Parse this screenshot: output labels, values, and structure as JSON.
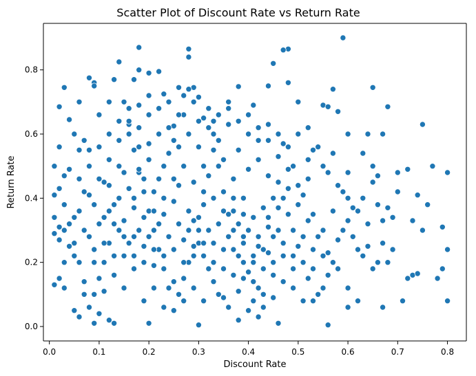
{
  "chart_data": {
    "type": "scatter",
    "title": "Scatter Plot of Discount Rate vs Return Rate",
    "xlabel": "Discount Rate",
    "ylabel": "Return Rate",
    "xlim": [
      -0.012,
      0.838
    ],
    "ylim": [
      -0.045,
      0.945
    ],
    "xticks": [
      0.0,
      0.1,
      0.2,
      0.3,
      0.4,
      0.5,
      0.6,
      0.7,
      0.8
    ],
    "yticks": [
      0.0,
      0.2,
      0.4,
      0.6,
      0.8
    ],
    "x_tick_labels": [
      "0.0",
      "0.1",
      "0.2",
      "0.3",
      "0.4",
      "0.5",
      "0.6",
      "0.7",
      "0.8"
    ],
    "y_tick_labels": [
      "0.0",
      "0.2",
      "0.4",
      "0.6",
      "0.8"
    ],
    "grid": false,
    "legend": "none",
    "marker_color": "#1f77b4",
    "points": [
      [
        0.59,
        0.9
      ],
      [
        0.18,
        0.87
      ],
      [
        0.28,
        0.865
      ],
      [
        0.48,
        0.865
      ],
      [
        0.47,
        0.862
      ],
      [
        0.28,
        0.84
      ],
      [
        0.14,
        0.825
      ],
      [
        0.45,
        0.82
      ],
      [
        0.18,
        0.8
      ],
      [
        0.2,
        0.79
      ],
      [
        0.22,
        0.795
      ],
      [
        0.08,
        0.775
      ],
      [
        0.09,
        0.76
      ],
      [
        0.09,
        0.75
      ],
      [
        0.13,
        0.77
      ],
      [
        0.17,
        0.77
      ],
      [
        0.03,
        0.745
      ],
      [
        0.26,
        0.745
      ],
      [
        0.29,
        0.745
      ],
      [
        0.38,
        0.748
      ],
      [
        0.44,
        0.75
      ],
      [
        0.48,
        0.76
      ],
      [
        0.57,
        0.74
      ],
      [
        0.65,
        0.745
      ],
      [
        0.23,
        0.725
      ],
      [
        0.27,
        0.72
      ],
      [
        0.3,
        0.715
      ],
      [
        0.06,
        0.7
      ],
      [
        0.12,
        0.7
      ],
      [
        0.15,
        0.7
      ],
      [
        0.36,
        0.7
      ],
      [
        0.41,
        0.69
      ],
      [
        0.5,
        0.7
      ],
      [
        0.55,
        0.69
      ],
      [
        0.56,
        0.685
      ],
      [
        0.58,
        0.67
      ],
      [
        0.68,
        0.685
      ],
      [
        0.02,
        0.685
      ],
      [
        0.1,
        0.66
      ],
      [
        0.04,
        0.645
      ],
      [
        0.16,
        0.63
      ],
      [
        0.25,
        0.625
      ],
      [
        0.33,
        0.64
      ],
      [
        0.44,
        0.63
      ],
      [
        0.52,
        0.62
      ],
      [
        0.6,
        0.6
      ],
      [
        0.64,
        0.6
      ],
      [
        0.67,
        0.6
      ],
      [
        0.75,
        0.63
      ],
      [
        0.05,
        0.6
      ],
      [
        0.07,
        0.58
      ],
      [
        0.08,
        0.55
      ],
      [
        0.02,
        0.56
      ],
      [
        0.2,
        0.57
      ],
      [
        0.42,
        0.58
      ],
      [
        0.47,
        0.57
      ],
      [
        0.53,
        0.55
      ],
      [
        0.57,
        0.54
      ],
      [
        0.63,
        0.54
      ],
      [
        0.01,
        0.5
      ],
      [
        0.03,
        0.47
      ],
      [
        0.02,
        0.43
      ],
      [
        0.01,
        0.41
      ],
      [
        0.04,
        0.49
      ],
      [
        0.06,
        0.46
      ],
      [
        0.11,
        0.45
      ],
      [
        0.18,
        0.48
      ],
      [
        0.31,
        0.5
      ],
      [
        0.4,
        0.49
      ],
      [
        0.49,
        0.5
      ],
      [
        0.55,
        0.5
      ],
      [
        0.6,
        0.48
      ],
      [
        0.65,
        0.5
      ],
      [
        0.7,
        0.48
      ],
      [
        0.72,
        0.49
      ],
      [
        0.77,
        0.5
      ],
      [
        0.8,
        0.48
      ],
      [
        0.66,
        0.47
      ],
      [
        0.01,
        0.34
      ],
      [
        0.01,
        0.29
      ],
      [
        0.02,
        0.27
      ],
      [
        0.03,
        0.3
      ],
      [
        0.02,
        0.31
      ],
      [
        0.04,
        0.25
      ],
      [
        0.03,
        0.2
      ],
      [
        0.05,
        0.22
      ],
      [
        0.02,
        0.15
      ],
      [
        0.03,
        0.12
      ],
      [
        0.01,
        0.13
      ],
      [
        0.07,
        0.1
      ],
      [
        0.05,
        0.05
      ],
      [
        0.06,
        0.03
      ],
      [
        0.09,
        0.01
      ],
      [
        0.1,
        0.04
      ],
      [
        0.12,
        0.02
      ],
      [
        0.13,
        0.01
      ],
      [
        0.2,
        0.01
      ],
      [
        0.3,
        0.005
      ],
      [
        0.38,
        0.02
      ],
      [
        0.42,
        0.03
      ],
      [
        0.46,
        0.01
      ],
      [
        0.56,
        0.005
      ],
      [
        0.6,
        0.06
      ],
      [
        0.62,
        0.08
      ],
      [
        0.67,
        0.06
      ],
      [
        0.71,
        0.08
      ],
      [
        0.8,
        0.08
      ],
      [
        0.73,
        0.16
      ],
      [
        0.74,
        0.165
      ],
      [
        0.78,
        0.15
      ],
      [
        0.79,
        0.18
      ],
      [
        0.8,
        0.24
      ],
      [
        0.72,
        0.15
      ],
      [
        0.75,
        0.3
      ],
      [
        0.79,
        0.31
      ],
      [
        0.76,
        0.38
      ],
      [
        0.74,
        0.41
      ],
      [
        0.73,
        0.33
      ],
      [
        0.69,
        0.34
      ],
      [
        0.68,
        0.37
      ],
      [
        0.67,
        0.33
      ],
      [
        0.7,
        0.42
      ],
      [
        0.64,
        0.25
      ],
      [
        0.66,
        0.2
      ],
      [
        0.68,
        0.2
      ],
      [
        0.69,
        0.24
      ],
      [
        0.62,
        0.24
      ],
      [
        0.65,
        0.45
      ],
      [
        0.63,
        0.4
      ],
      [
        0.61,
        0.37
      ],
      [
        0.6,
        0.33
      ],
      [
        0.59,
        0.3
      ],
      [
        0.58,
        0.27
      ],
      [
        0.57,
        0.2
      ],
      [
        0.56,
        0.16
      ],
      [
        0.55,
        0.12
      ],
      [
        0.54,
        0.1
      ],
      [
        0.53,
        0.08
      ],
      [
        0.52,
        0.15
      ],
      [
        0.51,
        0.2
      ],
      [
        0.5,
        0.25
      ],
      [
        0.49,
        0.3
      ],
      [
        0.48,
        0.35
      ],
      [
        0.47,
        0.4
      ],
      [
        0.46,
        0.45
      ],
      [
        0.45,
        0.28
      ],
      [
        0.44,
        0.23
      ],
      [
        0.43,
        0.18
      ],
      [
        0.42,
        0.12
      ],
      [
        0.41,
        0.08
      ],
      [
        0.4,
        0.05
      ],
      [
        0.39,
        0.15
      ],
      [
        0.38,
        0.22
      ],
      [
        0.37,
        0.3
      ],
      [
        0.36,
        0.35
      ],
      [
        0.35,
        0.42
      ],
      [
        0.34,
        0.5
      ],
      [
        0.33,
        0.55
      ],
      [
        0.32,
        0.47
      ],
      [
        0.31,
        0.38
      ],
      [
        0.3,
        0.3
      ],
      [
        0.29,
        0.25
      ],
      [
        0.28,
        0.2
      ],
      [
        0.27,
        0.15
      ],
      [
        0.26,
        0.1
      ],
      [
        0.25,
        0.05
      ],
      [
        0.24,
        0.12
      ],
      [
        0.23,
        0.18
      ],
      [
        0.22,
        0.24
      ],
      [
        0.21,
        0.3
      ],
      [
        0.2,
        0.36
      ],
      [
        0.19,
        0.42
      ],
      [
        0.18,
        0.49
      ],
      [
        0.17,
        0.55
      ],
      [
        0.16,
        0.6
      ],
      [
        0.15,
        0.48
      ],
      [
        0.14,
        0.4
      ],
      [
        0.13,
        0.32
      ],
      [
        0.12,
        0.26
      ],
      [
        0.11,
        0.2
      ],
      [
        0.1,
        0.15
      ],
      [
        0.09,
        0.1
      ],
      [
        0.08,
        0.06
      ],
      [
        0.07,
        0.14
      ],
      [
        0.06,
        0.2
      ],
      [
        0.05,
        0.26
      ],
      [
        0.04,
        0.32
      ],
      [
        0.06,
        0.36
      ],
      [
        0.08,
        0.41
      ],
      [
        0.1,
        0.46
      ],
      [
        0.12,
        0.52
      ],
      [
        0.14,
        0.58
      ],
      [
        0.16,
        0.64
      ],
      [
        0.18,
        0.69
      ],
      [
        0.2,
        0.66
      ],
      [
        0.22,
        0.6
      ],
      [
        0.24,
        0.54
      ],
      [
        0.26,
        0.44
      ],
      [
        0.28,
        0.36
      ],
      [
        0.3,
        0.26
      ],
      [
        0.32,
        0.18
      ],
      [
        0.34,
        0.1
      ],
      [
        0.36,
        0.06
      ],
      [
        0.38,
        0.11
      ],
      [
        0.4,
        0.17
      ],
      [
        0.42,
        0.25
      ],
      [
        0.44,
        0.31
      ],
      [
        0.46,
        0.37
      ],
      [
        0.48,
        0.43
      ],
      [
        0.5,
        0.38
      ],
      [
        0.52,
        0.33
      ],
      [
        0.54,
        0.28
      ],
      [
        0.56,
        0.23
      ],
      [
        0.58,
        0.18
      ],
      [
        0.6,
        0.12
      ],
      [
        0.53,
        0.35
      ],
      [
        0.51,
        0.41
      ],
      [
        0.49,
        0.18
      ],
      [
        0.47,
        0.14
      ],
      [
        0.45,
        0.09
      ],
      [
        0.43,
        0.06
      ],
      [
        0.41,
        0.34
      ],
      [
        0.39,
        0.4
      ],
      [
        0.37,
        0.46
      ],
      [
        0.35,
        0.52
      ],
      [
        0.33,
        0.6
      ],
      [
        0.31,
        0.65
      ],
      [
        0.29,
        0.7
      ],
      [
        0.27,
        0.66
      ],
      [
        0.25,
        0.58
      ],
      [
        0.23,
        0.5
      ],
      [
        0.21,
        0.42
      ],
      [
        0.19,
        0.34
      ],
      [
        0.17,
        0.28
      ],
      [
        0.15,
        0.22
      ],
      [
        0.13,
        0.16
      ],
      [
        0.11,
        0.11
      ],
      [
        0.09,
        0.24
      ],
      [
        0.07,
        0.3
      ],
      [
        0.05,
        0.34
      ],
      [
        0.03,
        0.38
      ],
      [
        0.08,
        0.28
      ],
      [
        0.1,
        0.32
      ],
      [
        0.12,
        0.36
      ],
      [
        0.14,
        0.3
      ],
      [
        0.16,
        0.26
      ],
      [
        0.18,
        0.3
      ],
      [
        0.2,
        0.28
      ],
      [
        0.22,
        0.32
      ],
      [
        0.24,
        0.28
      ],
      [
        0.26,
        0.32
      ],
      [
        0.28,
        0.3
      ],
      [
        0.3,
        0.34
      ],
      [
        0.32,
        0.3
      ],
      [
        0.34,
        0.32
      ],
      [
        0.36,
        0.28
      ],
      [
        0.38,
        0.32
      ],
      [
        0.4,
        0.3
      ],
      [
        0.42,
        0.28
      ],
      [
        0.44,
        0.34
      ],
      [
        0.46,
        0.3
      ],
      [
        0.15,
        0.33
      ],
      [
        0.17,
        0.37
      ],
      [
        0.19,
        0.25
      ],
      [
        0.21,
        0.19
      ],
      [
        0.23,
        0.35
      ],
      [
        0.25,
        0.39
      ],
      [
        0.27,
        0.27
      ],
      [
        0.29,
        0.33
      ],
      [
        0.31,
        0.22
      ],
      [
        0.33,
        0.26
      ],
      [
        0.35,
        0.24
      ],
      [
        0.37,
        0.36
      ],
      [
        0.39,
        0.28
      ],
      [
        0.41,
        0.22
      ],
      [
        0.43,
        0.37
      ],
      [
        0.45,
        0.4
      ],
      [
        0.12,
        0.44
      ],
      [
        0.14,
        0.5
      ],
      [
        0.16,
        0.43
      ],
      [
        0.18,
        0.56
      ],
      [
        0.2,
        0.52
      ],
      [
        0.22,
        0.46
      ],
      [
        0.24,
        0.62
      ],
      [
        0.26,
        0.56
      ],
      [
        0.28,
        0.6
      ],
      [
        0.3,
        0.56
      ],
      [
        0.32,
        0.62
      ],
      [
        0.34,
        0.58
      ],
      [
        0.36,
        0.63
      ],
      [
        0.38,
        0.55
      ],
      [
        0.4,
        0.6
      ],
      [
        0.42,
        0.52
      ],
      [
        0.44,
        0.47
      ],
      [
        0.46,
        0.53
      ],
      [
        0.48,
        0.49
      ],
      [
        0.5,
        0.44
      ],
      [
        0.52,
        0.46
      ],
      [
        0.27,
        0.5
      ],
      [
        0.25,
        0.46
      ],
      [
        0.23,
        0.4
      ],
      [
        0.21,
        0.36
      ],
      [
        0.19,
        0.46
      ],
      [
        0.17,
        0.4
      ],
      [
        0.29,
        0.45
      ],
      [
        0.31,
        0.42
      ],
      [
        0.33,
        0.4
      ],
      [
        0.35,
        0.36
      ],
      [
        0.37,
        0.4
      ],
      [
        0.39,
        0.35
      ],
      [
        0.07,
        0.42
      ],
      [
        0.09,
        0.38
      ],
      [
        0.11,
        0.34
      ],
      [
        0.13,
        0.38
      ],
      [
        0.15,
        0.12
      ],
      [
        0.17,
        0.18
      ],
      [
        0.19,
        0.08
      ],
      [
        0.21,
        0.12
      ],
      [
        0.23,
        0.06
      ],
      [
        0.25,
        0.14
      ],
      [
        0.27,
        0.08
      ],
      [
        0.29,
        0.12
      ],
      [
        0.31,
        0.08
      ],
      [
        0.33,
        0.14
      ],
      [
        0.35,
        0.09
      ],
      [
        0.37,
        0.16
      ],
      [
        0.39,
        0.2
      ],
      [
        0.41,
        0.14
      ],
      [
        0.43,
        0.1
      ],
      [
        0.45,
        0.16
      ],
      [
        0.47,
        0.22
      ],
      [
        0.49,
        0.12
      ],
      [
        0.51,
        0.08
      ],
      [
        0.53,
        0.24
      ],
      [
        0.55,
        0.3
      ],
      [
        0.57,
        0.36
      ],
      [
        0.59,
        0.42
      ],
      [
        0.61,
        0.28
      ],
      [
        0.63,
        0.22
      ],
      [
        0.65,
        0.18
      ],
      [
        0.67,
        0.26
      ],
      [
        0.06,
        0.55
      ],
      [
        0.08,
        0.5
      ],
      [
        0.1,
        0.56
      ],
      [
        0.12,
        0.6
      ],
      [
        0.14,
        0.64
      ],
      [
        0.16,
        0.68
      ],
      [
        0.18,
        0.62
      ],
      [
        0.2,
        0.72
      ],
      [
        0.22,
        0.68
      ],
      [
        0.24,
        0.7
      ],
      [
        0.26,
        0.66
      ],
      [
        0.28,
        0.74
      ],
      [
        0.3,
        0.64
      ],
      [
        0.32,
        0.68
      ],
      [
        0.34,
        0.66
      ],
      [
        0.36,
        0.68
      ],
      [
        0.38,
        0.64
      ],
      [
        0.4,
        0.66
      ],
      [
        0.42,
        0.62
      ],
      [
        0.44,
        0.58
      ],
      [
        0.46,
        0.6
      ],
      [
        0.48,
        0.56
      ],
      [
        0.5,
        0.6
      ],
      [
        0.52,
        0.52
      ],
      [
        0.54,
        0.56
      ],
      [
        0.56,
        0.48
      ],
      [
        0.58,
        0.44
      ],
      [
        0.6,
        0.4
      ],
      [
        0.62,
        0.36
      ],
      [
        0.64,
        0.32
      ],
      [
        0.66,
        0.38
      ],
      [
        0.09,
        0.2
      ],
      [
        0.11,
        0.26
      ],
      [
        0.13,
        0.22
      ],
      [
        0.15,
        0.28
      ],
      [
        0.17,
        0.22
      ],
      [
        0.19,
        0.2
      ],
      [
        0.21,
        0.24
      ],
      [
        0.23,
        0.22
      ],
      [
        0.25,
        0.24
      ],
      [
        0.27,
        0.2
      ],
      [
        0.29,
        0.22
      ],
      [
        0.31,
        0.26
      ],
      [
        0.33,
        0.2
      ],
      [
        0.35,
        0.18
      ],
      [
        0.37,
        0.24
      ],
      [
        0.39,
        0.26
      ],
      [
        0.41,
        0.2
      ],
      [
        0.43,
        0.24
      ],
      [
        0.45,
        0.2
      ],
      [
        0.47,
        0.26
      ],
      [
        0.49,
        0.22
      ],
      [
        0.51,
        0.28
      ],
      [
        0.53,
        0.18
      ],
      [
        0.55,
        0.22
      ]
    ]
  }
}
